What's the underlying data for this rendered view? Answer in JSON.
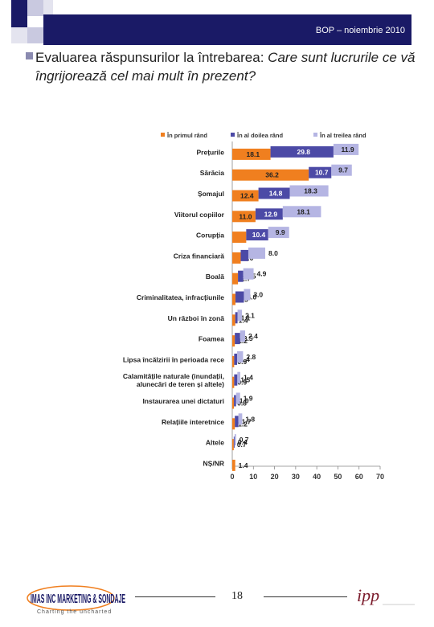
{
  "header": {
    "label": "BOP – noiembrie 2010"
  },
  "title": {
    "lead": "Evaluarea răspunsurilor la întrebarea: ",
    "question": "Care sunt lucrurile ce vă îngrijorează cel mai mult în prezent?"
  },
  "footer": {
    "page_number": "18",
    "logo_left": "IMAS INC MARKETING & SONDAJE",
    "logo_left_tagline": "Charting the uncharted",
    "logo_right": "ipp"
  },
  "colors": {
    "series1": "#f07f1f",
    "series2": "#4c4aa6",
    "series3": "#b5b5e3",
    "header": "#1a1a66"
  },
  "chart_data": {
    "type": "bar",
    "orientation": "horizontal",
    "stacked": true,
    "categories": [
      [
        "Prețurile"
      ],
      [
        "Sărăcia"
      ],
      [
        "Șomajul"
      ],
      [
        "Viitorul copiilor"
      ],
      [
        "Corupția"
      ],
      [
        "Criza financiară"
      ],
      [
        "Boală"
      ],
      [
        "Criminalitatea, infracțiunile"
      ],
      [
        "Un război în zonă"
      ],
      [
        "Foamea"
      ],
      [
        "Lipsa încălzirii în perioada rece"
      ],
      [
        "Calamitățile naturale (inundații,",
        "alunecări de teren și altele)"
      ],
      [
        "Instaurarea unei dictaturi"
      ],
      [
        "Relațiile interetnice"
      ],
      [
        "Altele"
      ],
      [
        "NȘ/NR"
      ]
    ],
    "series": [
      {
        "name": "În primul rând",
        "values": [
          18.1,
          36.2,
          12.4,
          11.0,
          6.6,
          4.0,
          2.7,
          1.5,
          1.4,
          1.2,
          0.9,
          0.9,
          0.8,
          1.2,
          0.7,
          1.4
        ]
      },
      {
        "name": "În al doilea rând",
        "values": [
          29.8,
          10.7,
          14.8,
          12.9,
          10.4,
          3.6,
          2.5,
          4.0,
          1.1,
          2.5,
          1.4,
          1.5,
          1.0,
          1.7,
          0.4,
          0.0
        ]
      },
      {
        "name": "În al treilea rând",
        "values": [
          11.9,
          9.7,
          18.3,
          18.1,
          9.9,
          8.0,
          4.9,
          3.0,
          2.1,
          2.4,
          2.8,
          1.4,
          1.9,
          1.8,
          0.7,
          0.0
        ]
      }
    ],
    "data_labels": [
      [
        "18.1",
        "29.8",
        "11.9"
      ],
      [
        "36.2",
        "10.7",
        "9.7"
      ],
      [
        "12.4",
        "14.8",
        "18.3"
      ],
      [
        "11.0",
        "12.9",
        "18.1"
      ],
      [
        "6.6",
        "10.4",
        "9.9"
      ],
      [
        "4.0",
        "3.6",
        "8.0"
      ],
      [
        "2.7",
        "2.5",
        "4.9"
      ],
      [
        "1.5",
        "4.0",
        "3.0"
      ],
      [
        "1.4",
        "1.1",
        "2.1"
      ],
      [
        "1.2",
        "2.5",
        "2.4"
      ],
      [
        "0.9",
        "1.4",
        "2.8"
      ],
      [
        "0.9",
        "1.5",
        "1.4"
      ],
      [
        "0.8",
        "1.0",
        "1.9"
      ],
      [
        "1.2",
        "1.7",
        "1.8"
      ],
      [
        "0.7",
        "0.4",
        "0.7"
      ],
      [
        "1.4",
        "",
        ""
      ]
    ],
    "xlim": [
      0,
      70
    ],
    "xticks": [
      "0",
      "10",
      "20",
      "30",
      "40",
      "50",
      "60",
      "70"
    ],
    "legend_position": "top"
  }
}
